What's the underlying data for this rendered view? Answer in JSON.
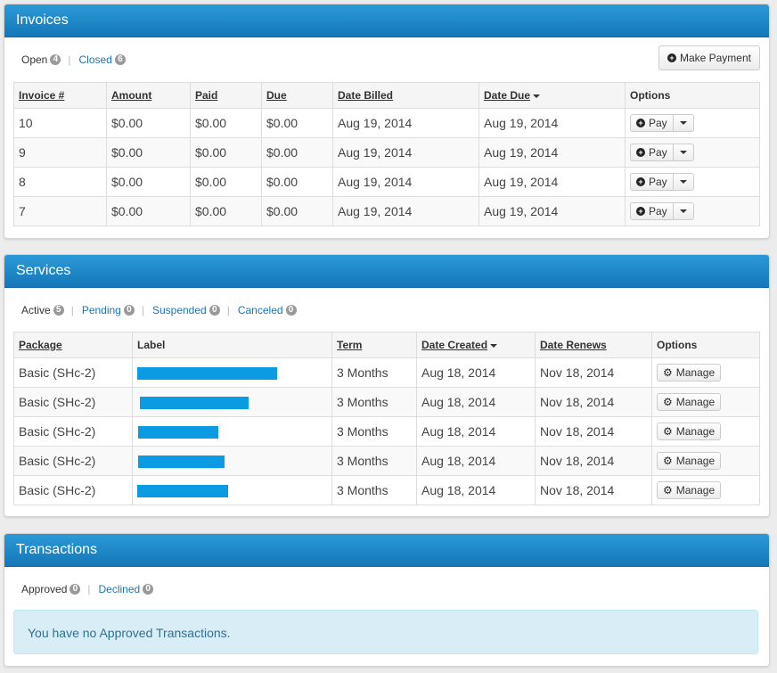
{
  "invoices": {
    "title": "Invoices",
    "filters": [
      {
        "label": "Open",
        "count": "4"
      },
      {
        "label": "Closed",
        "count": "6"
      }
    ],
    "make_payment_label": "Make Payment",
    "columns": [
      "Invoice #",
      "Amount",
      "Paid",
      "Due",
      "Date Billed",
      "Date Due",
      "Options"
    ],
    "rows": [
      {
        "invoice": "10",
        "amount": "$0.00",
        "paid": "$0.00",
        "due": "$0.00",
        "billed": "Aug 19, 2014",
        "date_due": "Aug 19, 2014"
      },
      {
        "invoice": "9",
        "amount": "$0.00",
        "paid": "$0.00",
        "due": "$0.00",
        "billed": "Aug 19, 2014",
        "date_due": "Aug 19, 2014"
      },
      {
        "invoice": "8",
        "amount": "$0.00",
        "paid": "$0.00",
        "due": "$0.00",
        "billed": "Aug 19, 2014",
        "date_due": "Aug 19, 2014"
      },
      {
        "invoice": "7",
        "amount": "$0.00",
        "paid": "$0.00",
        "due": "$0.00",
        "billed": "Aug 19, 2014",
        "date_due": "Aug 19, 2014"
      }
    ],
    "pay_label": "Pay"
  },
  "services": {
    "title": "Services",
    "filters": [
      {
        "label": "Active",
        "count": "5"
      },
      {
        "label": "Pending",
        "count": "0"
      },
      {
        "label": "Suspended",
        "count": "0"
      },
      {
        "label": "Canceled",
        "count": "0"
      }
    ],
    "columns": [
      "Package",
      "Label",
      "Term",
      "Date Created",
      "Date Renews",
      "Options"
    ],
    "rows": [
      {
        "package": "Basic (SHc-2)",
        "term": "3 Months",
        "created": "Aug 18, 2014",
        "renews": "Nov 18, 2014"
      },
      {
        "package": "Basic (SHc-2)",
        "term": "3 Months",
        "created": "Aug 18, 2014",
        "renews": "Nov 18, 2014"
      },
      {
        "package": "Basic (SHc-2)",
        "term": "3 Months",
        "created": "Aug 18, 2014",
        "renews": "Nov 18, 2014"
      },
      {
        "package": "Basic (SHc-2)",
        "term": "3 Months",
        "created": "Aug 18, 2014",
        "renews": "Nov 18, 2014"
      },
      {
        "package": "Basic (SHc-2)",
        "term": "3 Months",
        "created": "Aug 18, 2014",
        "renews": "Nov 18, 2014"
      }
    ],
    "manage_label": "Manage"
  },
  "transactions": {
    "title": "Transactions",
    "filters": [
      {
        "label": "Approved",
        "count": "0"
      },
      {
        "label": "Declined",
        "count": "0"
      }
    ],
    "empty_message": "You have no Approved Transactions."
  },
  "icons": {
    "pay": "plus-circle-icon",
    "make_payment": "plus-circle-icon",
    "manage": "gear-icon",
    "sort": "caret-down-icon",
    "dropdown": "caret-down-icon"
  },
  "colors": {
    "header": "#1a84c6",
    "link": "#1a74b8",
    "redaction": "#0b9be3",
    "info_bg": "#d9edf7"
  }
}
